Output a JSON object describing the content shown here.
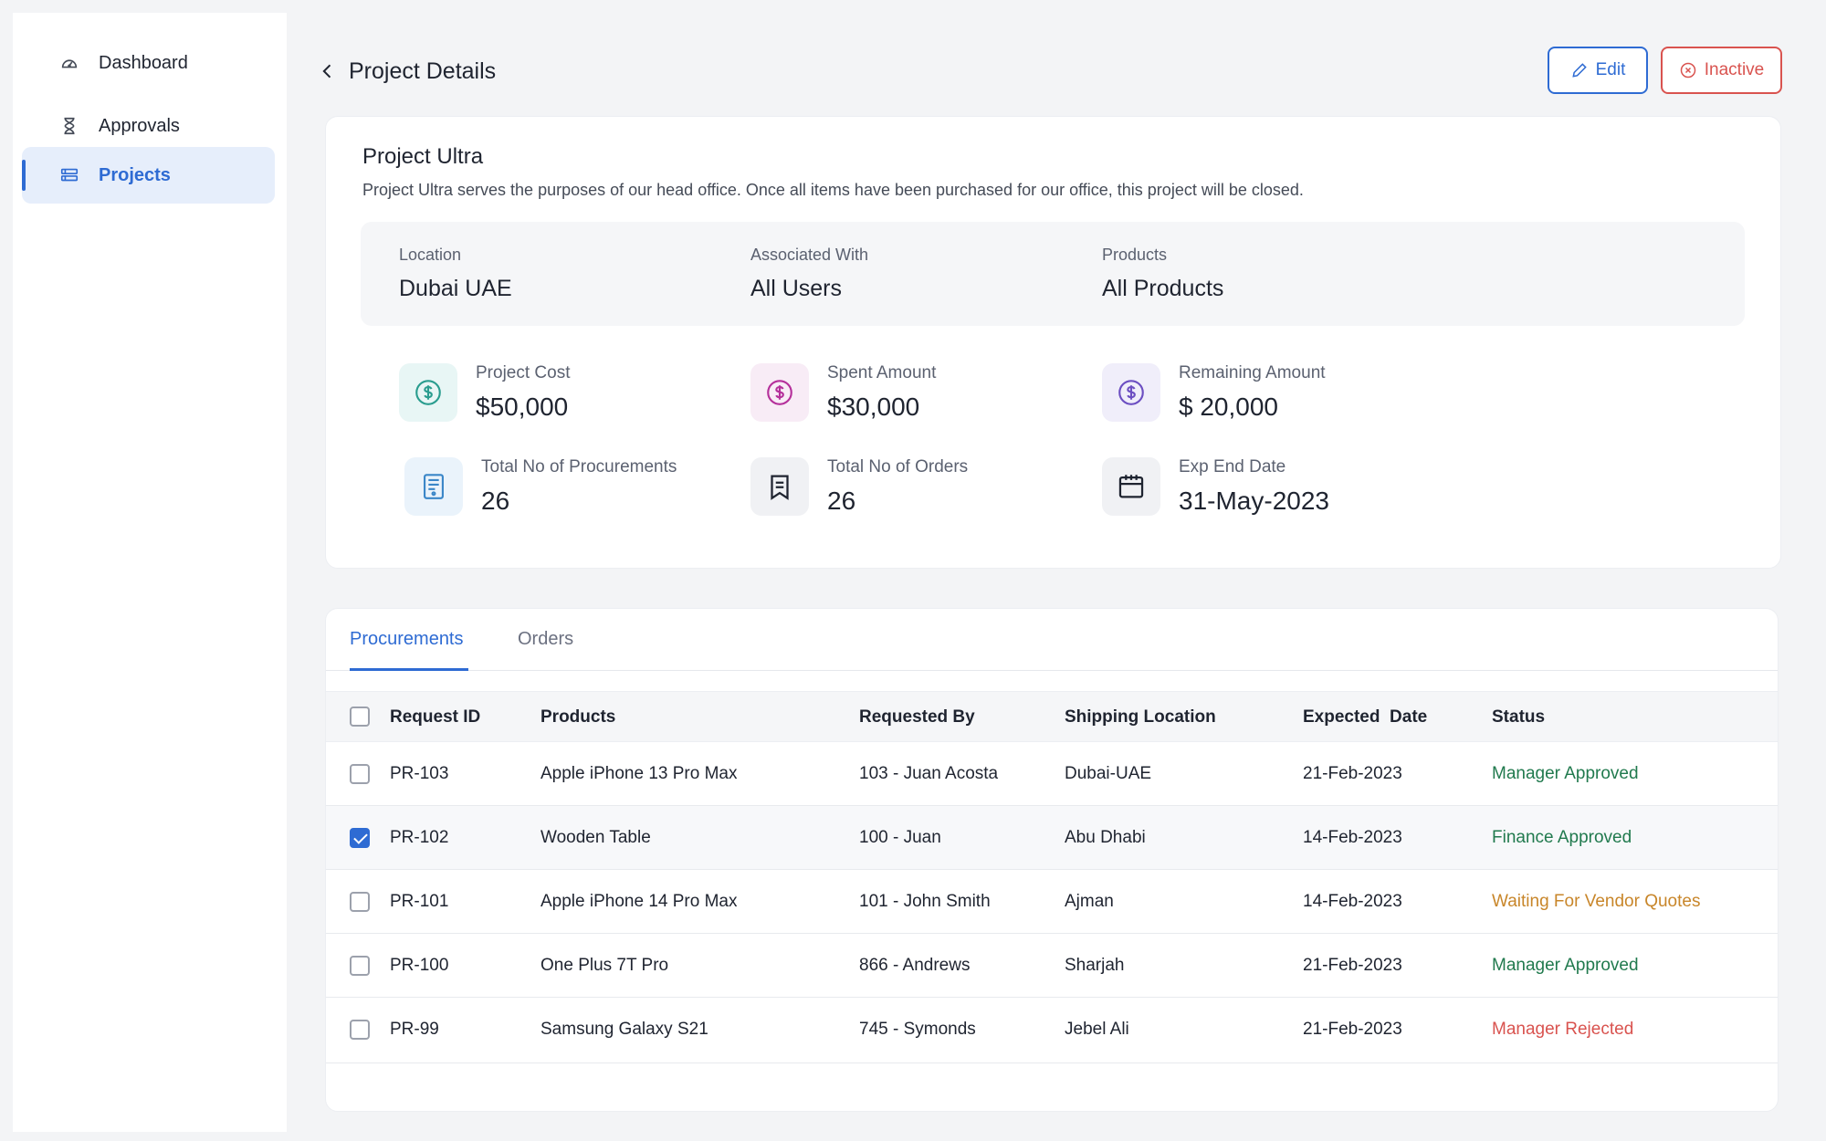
{
  "sidebar": {
    "items": [
      {
        "label": "Dashboard",
        "icon": "dashboard-gauge-icon",
        "active": false
      },
      {
        "label": "Approvals",
        "icon": "hourglass-icon",
        "active": false
      },
      {
        "label": "Projects",
        "icon": "projects-icon",
        "active": true
      }
    ]
  },
  "header": {
    "title": "Project Details",
    "edit_label": "Edit",
    "inactive_label": "Inactive"
  },
  "project": {
    "name": "Project Ultra",
    "description": "Project Ultra serves the purposes of our head office. Once all items have been purchased for our office, this project will be closed.",
    "info": {
      "location_label": "Location",
      "location_value": "Dubai UAE",
      "associated_label": "Associated With",
      "associated_value": "All Users",
      "products_label": "Products",
      "products_value": "All Products"
    },
    "stats": {
      "project_cost_label": "Project Cost",
      "project_cost_value": "$50,000",
      "spent_label": "Spent Amount",
      "spent_value": "$30,000",
      "remaining_label": "Remaining Amount",
      "remaining_value": "$ 20,000",
      "procurements_label": "Total No of Procurements",
      "procurements_value": "26",
      "orders_label": "Total No of Orders",
      "orders_value": "26",
      "end_date_label": "Exp End Date",
      "end_date_value": "31-May-2023"
    }
  },
  "tabs": [
    {
      "label": "Procurements",
      "active": true
    },
    {
      "label": "Orders",
      "active": false
    }
  ],
  "table": {
    "headers": [
      "Request ID",
      "Products",
      "Requested By",
      "Shipping Location",
      "Expected  Date",
      "Status"
    ],
    "rows": [
      {
        "id": "PR-103",
        "product": "Apple iPhone 13 Pro Max",
        "requested_by": "103 - Juan Acosta",
        "location": "Dubai-UAE",
        "date": "21-Feb-2023",
        "status": "Manager Approved",
        "checked": false
      },
      {
        "id": "PR-102",
        "product": "Wooden Table",
        "requested_by": "100 - Juan",
        "location": "Abu Dhabi",
        "date": "14-Feb-2023",
        "status": "Finance Approved",
        "checked": true
      },
      {
        "id": "PR-101",
        "product": "Apple iPhone 14 Pro Max",
        "requested_by": "101 - John Smith",
        "location": "Ajman",
        "date": "14-Feb-2023",
        "status": "Waiting For Vendor Quotes",
        "checked": false
      },
      {
        "id": "PR-100",
        "product": "One Plus 7T Pro",
        "requested_by": "866 - Andrews",
        "location": "Sharjah",
        "date": "21-Feb-2023",
        "status": "Manager Approved",
        "checked": false
      },
      {
        "id": "PR-99",
        "product": "Samsung Galaxy S21",
        "requested_by": "745 - Symonds",
        "location": "Jebel Ali",
        "date": "21-Feb-2023",
        "status": "Manager Rejected",
        "checked": false
      }
    ]
  },
  "colors": {
    "accent": "#2e6bd3",
    "danger": "#d9534f",
    "approved": "#217a4e",
    "waiting": "#c8862a"
  }
}
